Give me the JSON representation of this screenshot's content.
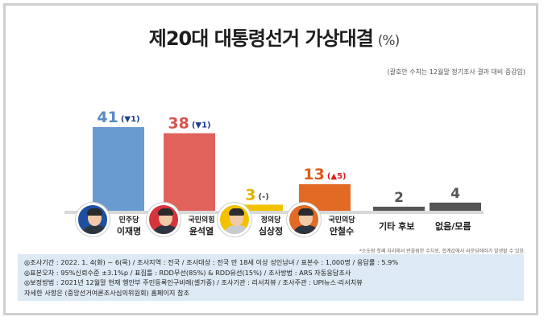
{
  "title": "제20대 대통령선거 가상대결",
  "title_unit": "(%)",
  "note": "(괄호안 수치는 12월말 정기조사 결과 대비 증감임)",
  "footnote": "*소숫점 첫째 자리에서 반올림한 수치로, 합계값에서 라운딩에러가 발생할 수 있음.",
  "survey_info": [
    "◎조사기간 : 2022. 1. 4(화) ~ 6(목) / 조사지역 : 전국 / 조사대상 : 전국 만 18세 이상 성인남녀 / 표본수 : 1,000명 / 응답률 : 5.9%",
    "◎표본오차 : 95%신뢰수준 ±3.1%p  / 표집틀 : RDD무선(85%) & RDD유선(15%) / 조사방법 : ARS 자동응답조사",
    "◎보정방법 : 2021년 12월말 현재 행안부 주민등록인구비례(셀가중) / 조사기관 : 리서치뷰 / 조사주관 : UPI뉴스·리서치뷰",
    "자세한 사항은 (중앙선거여론조사심의위원회) 홈페이지 참조"
  ],
  "candidates": [
    {
      "party": "민주당",
      "name": "이재명"
    },
    {
      "party": "국민의힘",
      "name": "윤석열"
    },
    {
      "party": "정의당",
      "name": "심상정"
    },
    {
      "party": "국민의당",
      "name": "안철수"
    }
  ],
  "other_labels": [
    "기타 후보",
    "없음/모름"
  ],
  "chart_data": {
    "type": "bar",
    "categories": [
      "민주당 이재명",
      "국민의힘 윤석열",
      "정의당 심상정",
      "국민의당 안철수",
      "기타 후보",
      "없음/모름"
    ],
    "values": [
      41,
      38,
      3,
      13,
      2,
      4
    ],
    "value_labels": [
      "41",
      "38",
      "3",
      "13",
      "2",
      "4"
    ],
    "changes": [
      "(▼1)",
      "(▼1)",
      "(-)",
      "(▲5)",
      "",
      ""
    ],
    "colors": [
      "#6a9bd0",
      "#e0625b",
      "#f2c200",
      "#e26a24",
      "#555555",
      "#555555"
    ],
    "label_colors": [
      "#5b8cc4",
      "#d9534f",
      "#e0b400",
      "#e05a1a",
      "#555555",
      "#555555"
    ],
    "change_colors": [
      "#1a3f8f",
      "#1a3f8f",
      "#444444",
      "#e02020",
      "#444444",
      "#444444"
    ],
    "avatar_colors": [
      "#1e4fa0",
      "#d6333a",
      "#f2c200",
      "#e26a24"
    ],
    "ylim": [
      0,
      41
    ],
    "grid": false,
    "legend": "none"
  }
}
